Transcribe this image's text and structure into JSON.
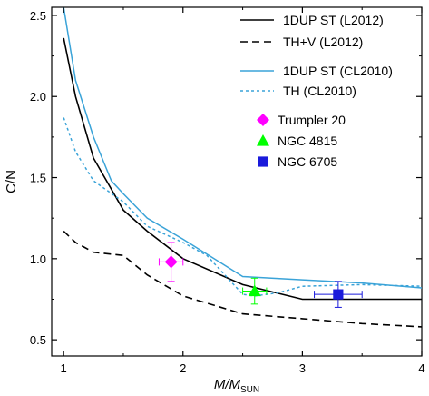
{
  "chart_data": {
    "type": "line",
    "xlabel": "M/M",
    "xlabel_sub": "SUN",
    "ylabel": "C/N",
    "xlim": [
      0.9,
      4.0
    ],
    "ylim": [
      0.4,
      2.55
    ],
    "x_ticks": [
      1,
      2,
      3,
      4
    ],
    "x_tick_labels": [
      "1",
      "2",
      "3",
      "4"
    ],
    "y_ticks": [
      0.5,
      1.0,
      1.5,
      2.0,
      2.5
    ],
    "y_tick_labels": [
      "0.5",
      "1.0",
      "1.5",
      "2.0",
      "2.5"
    ],
    "grid": false,
    "legend_position": "top-right",
    "series": [
      {
        "name": "1DUP ST (L2012)",
        "style": "solid",
        "color": "#000000",
        "x": [
          1.0,
          1.1,
          1.25,
          1.5,
          1.7,
          2.0,
          2.5,
          3.0,
          3.5,
          4.0
        ],
        "y": [
          2.36,
          2.0,
          1.62,
          1.3,
          1.17,
          1.0,
          0.84,
          0.75,
          0.75,
          0.75
        ]
      },
      {
        "name": "TH+V (L2012)",
        "style": "dashed",
        "color": "#000000",
        "x": [
          1.0,
          1.1,
          1.25,
          1.5,
          1.7,
          2.0,
          2.5,
          3.0,
          3.5,
          4.0
        ],
        "y": [
          1.17,
          1.1,
          1.04,
          1.02,
          0.9,
          0.77,
          0.66,
          0.63,
          0.6,
          0.58
        ]
      },
      {
        "name": "1DUP ST (CL2010)",
        "style": "solid",
        "color": "#3aa3d8",
        "x": [
          1.0,
          1.1,
          1.25,
          1.4,
          1.5,
          1.7,
          2.0,
          2.5,
          3.0,
          3.5,
          4.0
        ],
        "y": [
          2.55,
          2.1,
          1.75,
          1.48,
          1.4,
          1.25,
          1.12,
          0.89,
          0.87,
          0.85,
          0.82
        ]
      },
      {
        "name": "TH (CL2010)",
        "style": "dotted",
        "color": "#3aa3d8",
        "x": [
          1.0,
          1.1,
          1.25,
          1.5,
          1.7,
          2.0,
          2.2,
          2.5,
          2.6,
          2.8,
          3.0,
          3.5,
          4.0
        ],
        "y": [
          1.87,
          1.66,
          1.48,
          1.35,
          1.2,
          1.1,
          1.02,
          0.78,
          0.77,
          0.79,
          0.83,
          0.84,
          0.83
        ]
      }
    ],
    "points": [
      {
        "name": "Trumpler 20",
        "marker": "diamond",
        "color": "#ff00ff",
        "x": 1.9,
        "y": 0.98,
        "xerr": 0.1,
        "yerr": 0.12
      },
      {
        "name": "NGC 4815",
        "marker": "triangle",
        "color": "#00ff00",
        "x": 2.6,
        "y": 0.8,
        "xerr": 0.1,
        "yerr": 0.08
      },
      {
        "name": "NGC 6705",
        "marker": "square",
        "color": "#1a1adb",
        "x": 3.3,
        "y": 0.78,
        "xerr": 0.2,
        "yerr": 0.08
      }
    ]
  }
}
